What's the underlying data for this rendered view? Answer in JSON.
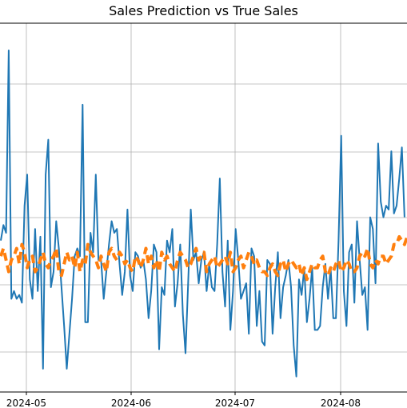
{
  "chart_data": {
    "type": "line",
    "title": "Sales Prediction vs True Sales",
    "xlabel": "",
    "ylabel": "",
    "x_ticks": [
      "2024-05",
      "2024-06",
      "2024-07",
      "2024-08"
    ],
    "grid": true,
    "legend": "none",
    "colors": {
      "true": "#1f77b4",
      "predicted": "#ff7f0e"
    },
    "series": [
      {
        "style": "solid",
        "color": "#1f77b4",
        "values": [
          -1.1,
          -0.7,
          -0.9,
          3.8,
          -2.6,
          -2.4,
          -2.6,
          -2.5,
          -2.7,
          -0.2,
          0.6,
          -2.1,
          -2.6,
          -0.8,
          -2.4,
          -1.0,
          -4.4,
          0.6,
          1.5,
          -2.3,
          -1.9,
          -0.6,
          -1.3,
          -2.3,
          -3.3,
          -4.4,
          -3.5,
          -2.6,
          -1.5,
          -1.3,
          -1.5,
          2.4,
          -3.2,
          -3.2,
          -0.9,
          -1.4,
          0.6,
          -1.6,
          -1.6,
          -2.6,
          -1.9,
          -1.2,
          -0.6,
          -0.9,
          -0.8,
          -1.7,
          -2.5,
          -1.9,
          -0.3,
          -2.0,
          -2.4,
          -1.4,
          -1.5,
          -1.8,
          -1.6,
          -2.1,
          -3.1,
          -2.4,
          -1.2,
          -1.4,
          -3.9,
          -2.3,
          -2.5,
          -1.1,
          -1.4,
          -0.8,
          -2.8,
          -2.2,
          -1.2,
          -3.0,
          -4.0,
          -2.2,
          -0.3,
          -1.6,
          -1.4,
          -2.2,
          -1.6,
          -1.4,
          -2.4,
          -1.7,
          -2.3,
          -2.4,
          -1.2,
          0.5,
          -1.9,
          -2.8,
          -1.1,
          -3.4,
          -2.4,
          -0.8,
          -1.6,
          -2.6,
          -2.4,
          -2.2,
          -3.5,
          -1.3,
          -1.5,
          -3.3,
          -2.4,
          -3.7,
          -3.8,
          -1.6,
          -1.7,
          -3.5,
          -2.3,
          -1.4,
          -3.1,
          -2.3,
          -2.0,
          -1.6,
          -2.3,
          -3.8,
          -4.6,
          -2.1,
          -2.5,
          -1.8,
          -3.2,
          -2.6,
          -1.8,
          -3.4,
          -3.4,
          -3.3,
          -2.3,
          -1.7,
          -2.6,
          -1.8,
          -3.1,
          -3.1,
          -1.1,
          1.6,
          -2.4,
          -3.3,
          -1.4,
          -1.2,
          -2.7,
          -0.6,
          -1.6,
          -2.5,
          -2.3,
          -3.4,
          -0.5,
          -0.8,
          -2.2,
          1.4,
          -0.1,
          -0.5,
          -0.2,
          -0.3,
          1.2,
          -0.4,
          -0.2,
          0.5,
          1.3,
          -0.5
        ]
      },
      {
        "style": "dashed",
        "color": "#ff7f0e",
        "values": [
          -1.5,
          -1.3,
          -1.6,
          -1.9,
          -1.6,
          -1.5,
          -1.3,
          -1.7,
          -1.2,
          -1.4,
          -1.8,
          -1.6,
          -1.5,
          -1.9,
          -1.8,
          -1.6,
          -1.4,
          -1.7,
          -1.8,
          -1.6,
          -1.5,
          -1.3,
          -1.9,
          -2.0,
          -1.7,
          -1.4,
          -1.6,
          -1.5,
          -1.8,
          -1.4,
          -1.9,
          -1.6,
          -1.7,
          -1.2,
          -1.4,
          -1.5,
          -1.6,
          -1.8,
          -1.5,
          -1.7,
          -1.9,
          -1.4,
          -1.3,
          -1.5,
          -1.6,
          -1.4,
          -1.5,
          -1.7,
          -1.6,
          -1.8,
          -1.9,
          -1.5,
          -1.6,
          -1.8,
          -1.6,
          -1.3,
          -1.7,
          -1.5,
          -1.8,
          -1.6,
          -1.9,
          -1.4,
          -1.6,
          -1.5,
          -1.7,
          -1.8,
          -1.9,
          -1.6,
          -1.4,
          -1.5,
          -1.6,
          -1.8,
          -1.7,
          -1.5,
          -1.3,
          -1.6,
          -1.5,
          -1.4,
          -1.9,
          -1.7,
          -1.6,
          -1.5,
          -1.8,
          -1.7,
          -1.6,
          -1.5,
          -1.7,
          -1.4,
          -1.9,
          -1.8,
          -1.6,
          -1.5,
          -1.8,
          -1.6,
          -1.4,
          -1.5,
          -1.7,
          -1.6,
          -1.8,
          -1.9,
          -1.9,
          -2.0,
          -1.8,
          -1.7,
          -1.9,
          -2.0,
          -1.7,
          -1.6,
          -1.9,
          -1.7,
          -1.6,
          -1.7,
          -1.8,
          -1.7,
          -2.0,
          -1.8,
          -2.1,
          -1.9,
          -1.7,
          -1.8,
          -1.8,
          -1.6,
          -1.5,
          -1.9,
          -2.0,
          -1.8,
          -1.9,
          -1.7,
          -1.6,
          -1.9,
          -1.8,
          -1.6,
          -1.7,
          -1.9,
          -1.9,
          -1.8,
          -1.5,
          -1.4,
          -1.5,
          -1.3,
          -1.7,
          -1.8,
          -1.6,
          -1.7,
          -1.5,
          -1.5,
          -1.7,
          -1.6,
          -1.5,
          -1.2,
          -1.2,
          -1.0,
          -1.1,
          -1.2,
          -1.0,
          -1.1
        ]
      }
    ]
  }
}
